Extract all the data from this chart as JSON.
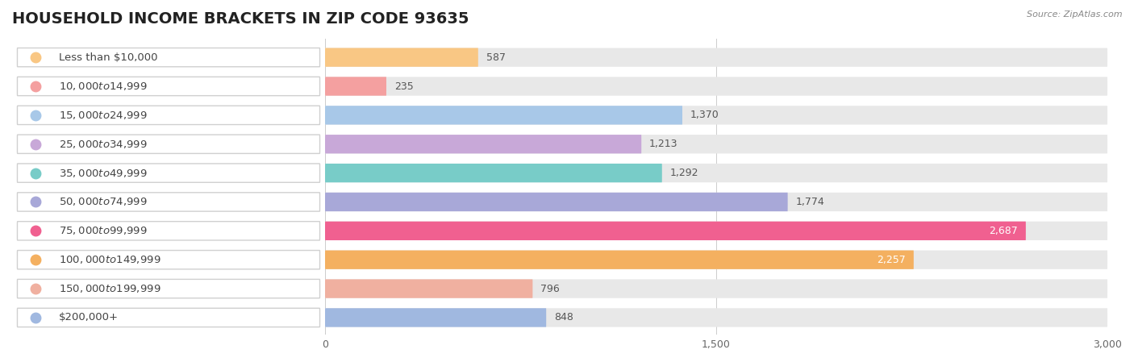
{
  "title": "HOUSEHOLD INCOME BRACKETS IN ZIP CODE 93635",
  "source": "Source: ZipAtlas.com",
  "categories": [
    "Less than $10,000",
    "$10,000 to $14,999",
    "$15,000 to $24,999",
    "$25,000 to $34,999",
    "$35,000 to $49,999",
    "$50,000 to $74,999",
    "$75,000 to $99,999",
    "$100,000 to $149,999",
    "$150,000 to $199,999",
    "$200,000+"
  ],
  "values": [
    587,
    235,
    1370,
    1213,
    1292,
    1774,
    2687,
    2257,
    796,
    848
  ],
  "bar_colors": [
    "#F9C784",
    "#F4A0A0",
    "#A8C8E8",
    "#C8A8D8",
    "#78CCC8",
    "#A8A8D8",
    "#F06090",
    "#F4B060",
    "#F0B0A0",
    "#A0B8E0"
  ],
  "dot_colors": [
    "#F9C784",
    "#F4A0A0",
    "#A8C8E8",
    "#C8A8D8",
    "#78CCC8",
    "#A8A8D8",
    "#F06090",
    "#F4B060",
    "#F0B0A0",
    "#A0B8E0"
  ],
  "xlim": [
    0,
    3000
  ],
  "xticks": [
    0,
    1500,
    3000
  ],
  "xtick_labels": [
    "0",
    "1,500",
    "3,000"
  ],
  "background_color": "#ffffff",
  "bar_background_color": "#e8e8e8",
  "title_fontsize": 14,
  "label_fontsize": 9.5,
  "value_fontsize": 9
}
